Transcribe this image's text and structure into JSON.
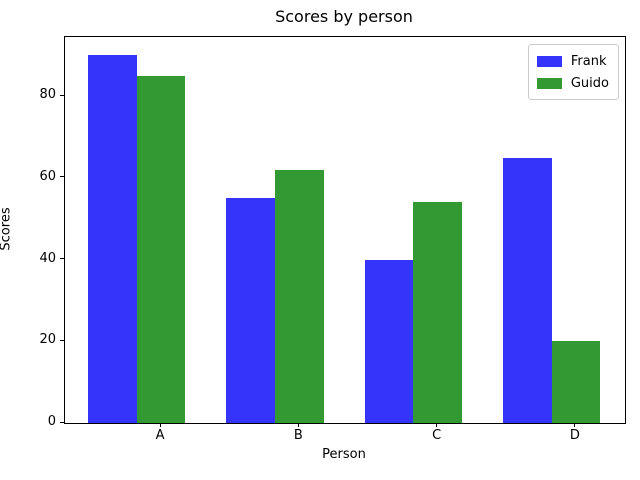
{
  "chart_data": {
    "type": "bar",
    "title": "Scores by person",
    "xlabel": "Person",
    "ylabel": "Scores",
    "categories": [
      "A",
      "B",
      "C",
      "D"
    ],
    "series": [
      {
        "name": "Frank",
        "color": "#3434fb",
        "values": [
          90,
          55,
          40,
          65
        ]
      },
      {
        "name": "Guido",
        "color": "#339933",
        "values": [
          85,
          62,
          54,
          20
        ]
      }
    ],
    "ylim": [
      0,
      94.5
    ],
    "yticks": [
      0,
      20,
      40,
      60,
      80
    ],
    "grid": false,
    "legend_position": "upper right",
    "background_color": "#ffffff",
    "axis_color": "#000000"
  }
}
